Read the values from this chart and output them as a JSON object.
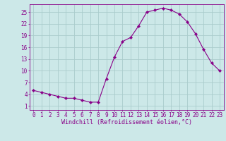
{
  "x": [
    0,
    1,
    2,
    3,
    4,
    5,
    6,
    7,
    8,
    9,
    10,
    11,
    12,
    13,
    14,
    15,
    16,
    17,
    18,
    19,
    20,
    21,
    22,
    23
  ],
  "y": [
    5.0,
    4.5,
    4.0,
    3.5,
    3.0,
    3.0,
    2.5,
    2.0,
    2.0,
    8.0,
    13.5,
    17.5,
    18.5,
    21.5,
    25.0,
    25.5,
    26.0,
    25.5,
    24.5,
    22.5,
    19.5,
    15.5,
    12.0,
    10.0
  ],
  "line_color": "#880088",
  "marker": "D",
  "marker_size": 2.2,
  "bg_color": "#cce8e8",
  "grid_color": "#aacccc",
  "xlabel": "Windchill (Refroidissement éolien,°C)",
  "xlabel_fontsize": 6.0,
  "yticks": [
    1,
    4,
    7,
    10,
    13,
    16,
    19,
    22,
    25
  ],
  "xticks": [
    0,
    1,
    2,
    3,
    4,
    5,
    6,
    7,
    8,
    9,
    10,
    11,
    12,
    13,
    14,
    15,
    16,
    17,
    18,
    19,
    20,
    21,
    22,
    23
  ],
  "ylim": [
    0,
    27
  ],
  "xlim": [
    -0.5,
    23.5
  ],
  "tick_color": "#880088",
  "tick_fontsize": 5.5,
  "spine_color": "#880088"
}
